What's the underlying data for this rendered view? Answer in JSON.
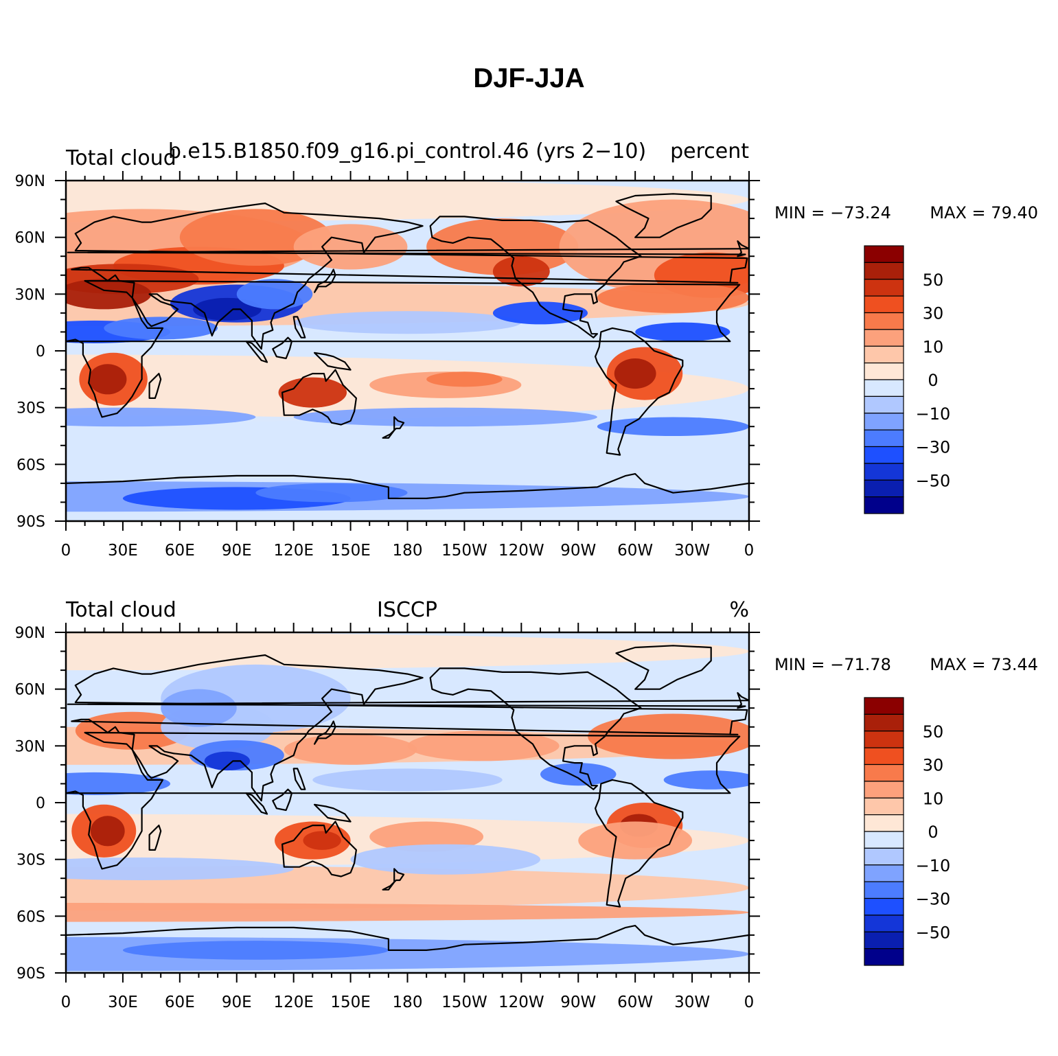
{
  "title": "DJF-JJA",
  "colors": [
    "#00008b",
    "#0a1fb0",
    "#1436d8",
    "#1e50ff",
    "#4c7cff",
    "#7fa3ff",
    "#b0c8ff",
    "#d8e8ff",
    "#fee7d6",
    "#fec7aa",
    "#fca17c",
    "#f87a4b",
    "#ef5020",
    "#cd3310",
    "#a9200a",
    "#8b0000"
  ],
  "colorbar_labels": [
    "50",
    "30",
    "10",
    "0",
    "−10",
    "−30",
    "−50"
  ],
  "x_ticks": [
    "0",
    "30E",
    "60E",
    "90E",
    "120E",
    "150E",
    "180",
    "150W",
    "120W",
    "90W",
    "60W",
    "30W",
    "0"
  ],
  "y_ticks": [
    "90N",
    "60N",
    "30N",
    "0",
    "30S",
    "60S",
    "90S"
  ],
  "panels": [
    {
      "left_title": "Total cloud",
      "center_title": "b.e15.B1850.f09_g16.pi_control.46 (yrs 2−10)",
      "right_title": "percent",
      "min_label": "MIN = −73.24",
      "max_label": "MAX =   79.40"
    },
    {
      "left_title": "Total cloud",
      "center_title": "ISCCP",
      "right_title": "%",
      "min_label": "MIN = −71.78",
      "max_label": "MAX =   73.44"
    }
  ]
}
